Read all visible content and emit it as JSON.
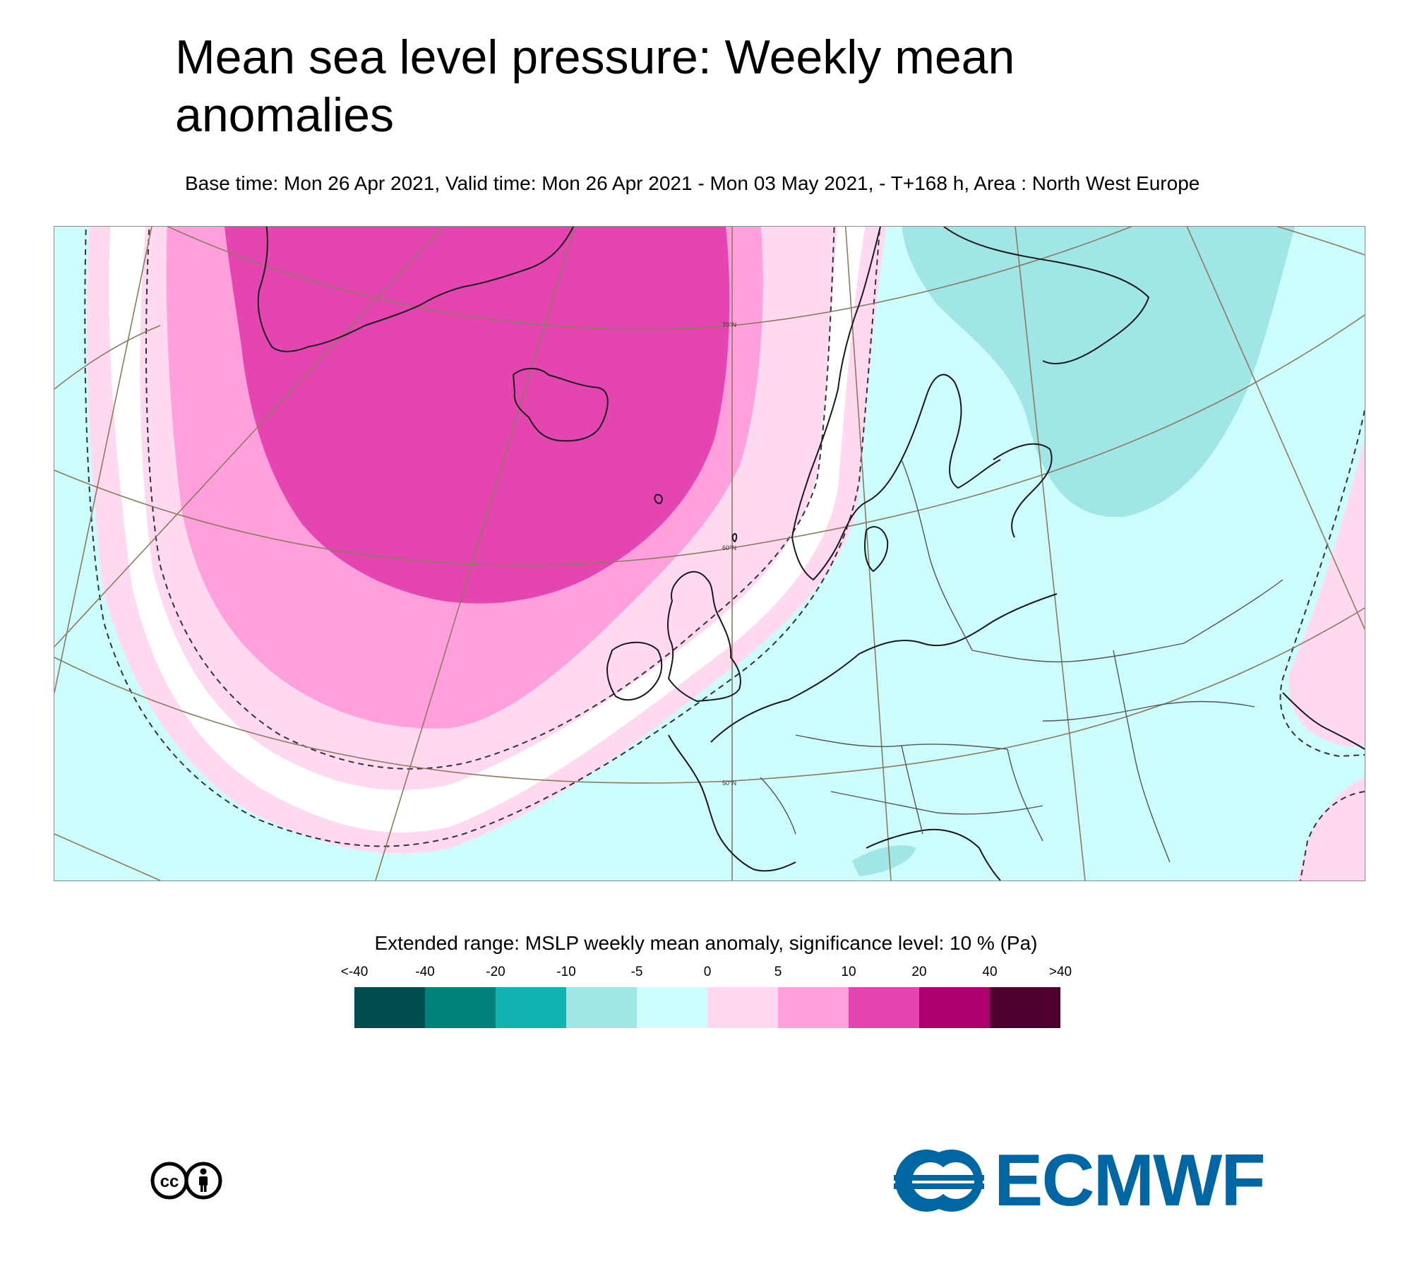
{
  "header": {
    "title": "Mean sea level pressure: Weekly mean anomalies",
    "subtitle": "Base time: Mon 26 Apr 2021, Valid time: Mon 26 Apr 2021 - Mon 03 May 2021, - T+168 h, Area : North West Europe"
  },
  "map": {
    "area": "North West Europe",
    "latitude_labels": [
      "70°N",
      "60°N",
      "50°N"
    ],
    "colors": {
      "ocean_base": "#ccfcfc",
      "land_outline": "#1a1a1a",
      "graticule": "#8c7b5e"
    }
  },
  "legend": {
    "title": "Extended range: MSLP weekly mean anomaly, significance level: 10 % (Pa)",
    "labels": [
      "<-40",
      "-40",
      "-20",
      "-10",
      "-5",
      "0",
      "5",
      "10",
      "20",
      "40",
      ">40"
    ],
    "colors": [
      "#004d4d",
      "#00807a",
      "#12b3b0",
      "#a0e6e6",
      "#ccfcfc",
      "#ffd9f0",
      "#ffa0dd",
      "#e445b0",
      "#b0006f",
      "#4d0030"
    ]
  },
  "footer": {
    "license_icon": "creative-commons-by-icon",
    "logo_text": "ECMWF",
    "logo_color": "#0067a5"
  }
}
